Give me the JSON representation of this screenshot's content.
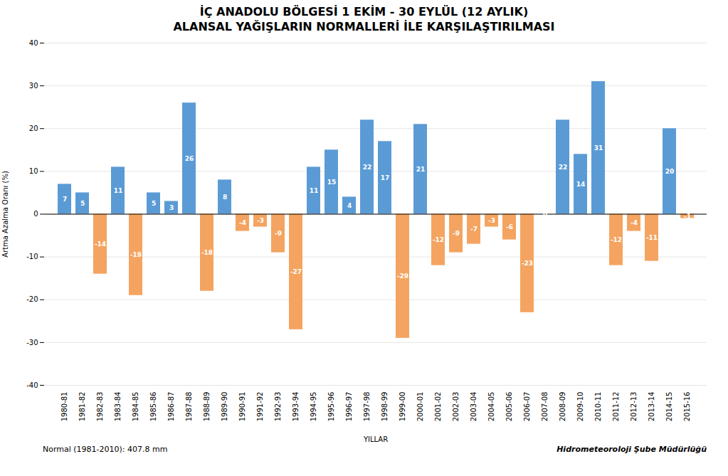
{
  "chart_data": {
    "type": "bar",
    "title": "İÇ ANADOLU BÖLGESİ  1 EKİM - 30 EYLÜL (12 AYLIK)",
    "subtitle": "ALANSAL YAĞIŞLARIN NORMALLERİ İLE KARŞILAŞTIRILMASI",
    "xlabel": "YILLAR",
    "ylabel": "Artma Azalma Oranı (%)",
    "annotations": [
      "Normal (1981-2010): 407.8 mm",
      "Hidrometeoroloji Şube Müdürlüğü"
    ],
    "categories": [
      "1980-81",
      "1981-82",
      "1982-83",
      "1983-84",
      "1984-85",
      "1985-86",
      "1986-87",
      "1987-88",
      "1988-89",
      "1989-90",
      "1990-91",
      "1991-92",
      "1992-93",
      "1993-94",
      "1994-95",
      "1995-96",
      "1996-97",
      "1997-98",
      "1998-99",
      "1999-00",
      "2000-01",
      "2001-02",
      "2002-03",
      "2003-04",
      "2004-05",
      "2005-06",
      "2006-07",
      "2007-08",
      "2008-09",
      "2009-10",
      "2010-11",
      "2011-12",
      "2012-13",
      "2013-14",
      "2014-15",
      "2015-16"
    ],
    "values": [
      7,
      5,
      -14,
      11,
      -19,
      5,
      3,
      26,
      -18,
      8,
      -4,
      -3,
      -9,
      -27,
      11,
      15,
      4,
      22,
      17,
      -29,
      21,
      -12,
      -9,
      -7,
      -3,
      -6,
      -23,
      0,
      22,
      14,
      31,
      -12,
      -4,
      -11,
      20,
      -1
    ],
    "colors": [
      "#5B9BD5",
      "#5B9BD5",
      "#F4A460",
      "#5B9BD5",
      "#F4A460",
      "#5B9BD5",
      "#5B9BD5",
      "#5B9BD5",
      "#F4A460",
      "#5B9BD5",
      "#F4A460",
      "#F4A460",
      "#F4A460",
      "#F4A460",
      "#5B9BD5",
      "#5B9BD5",
      "#5B9BD5",
      "#5B9BD5",
      "#5B9BD5",
      "#F4A460",
      "#5B9BD5",
      "#F4A460",
      "#F4A460",
      "#F4A460",
      "#F4A460",
      "#F4A460",
      "#F4A460",
      "#5B9BD5",
      "#5B9BD5",
      "#5B9BD5",
      "#5B9BD5",
      "#F4A460",
      "#F4A460",
      "#F4A460",
      "#5B9BD5",
      "#F4A460"
    ],
    "ylim": [
      -40,
      40
    ],
    "yticks": [
      -40,
      -30,
      -20,
      -10,
      0,
      10,
      20,
      30,
      40
    ],
    "grid": true,
    "data_labels": true
  }
}
